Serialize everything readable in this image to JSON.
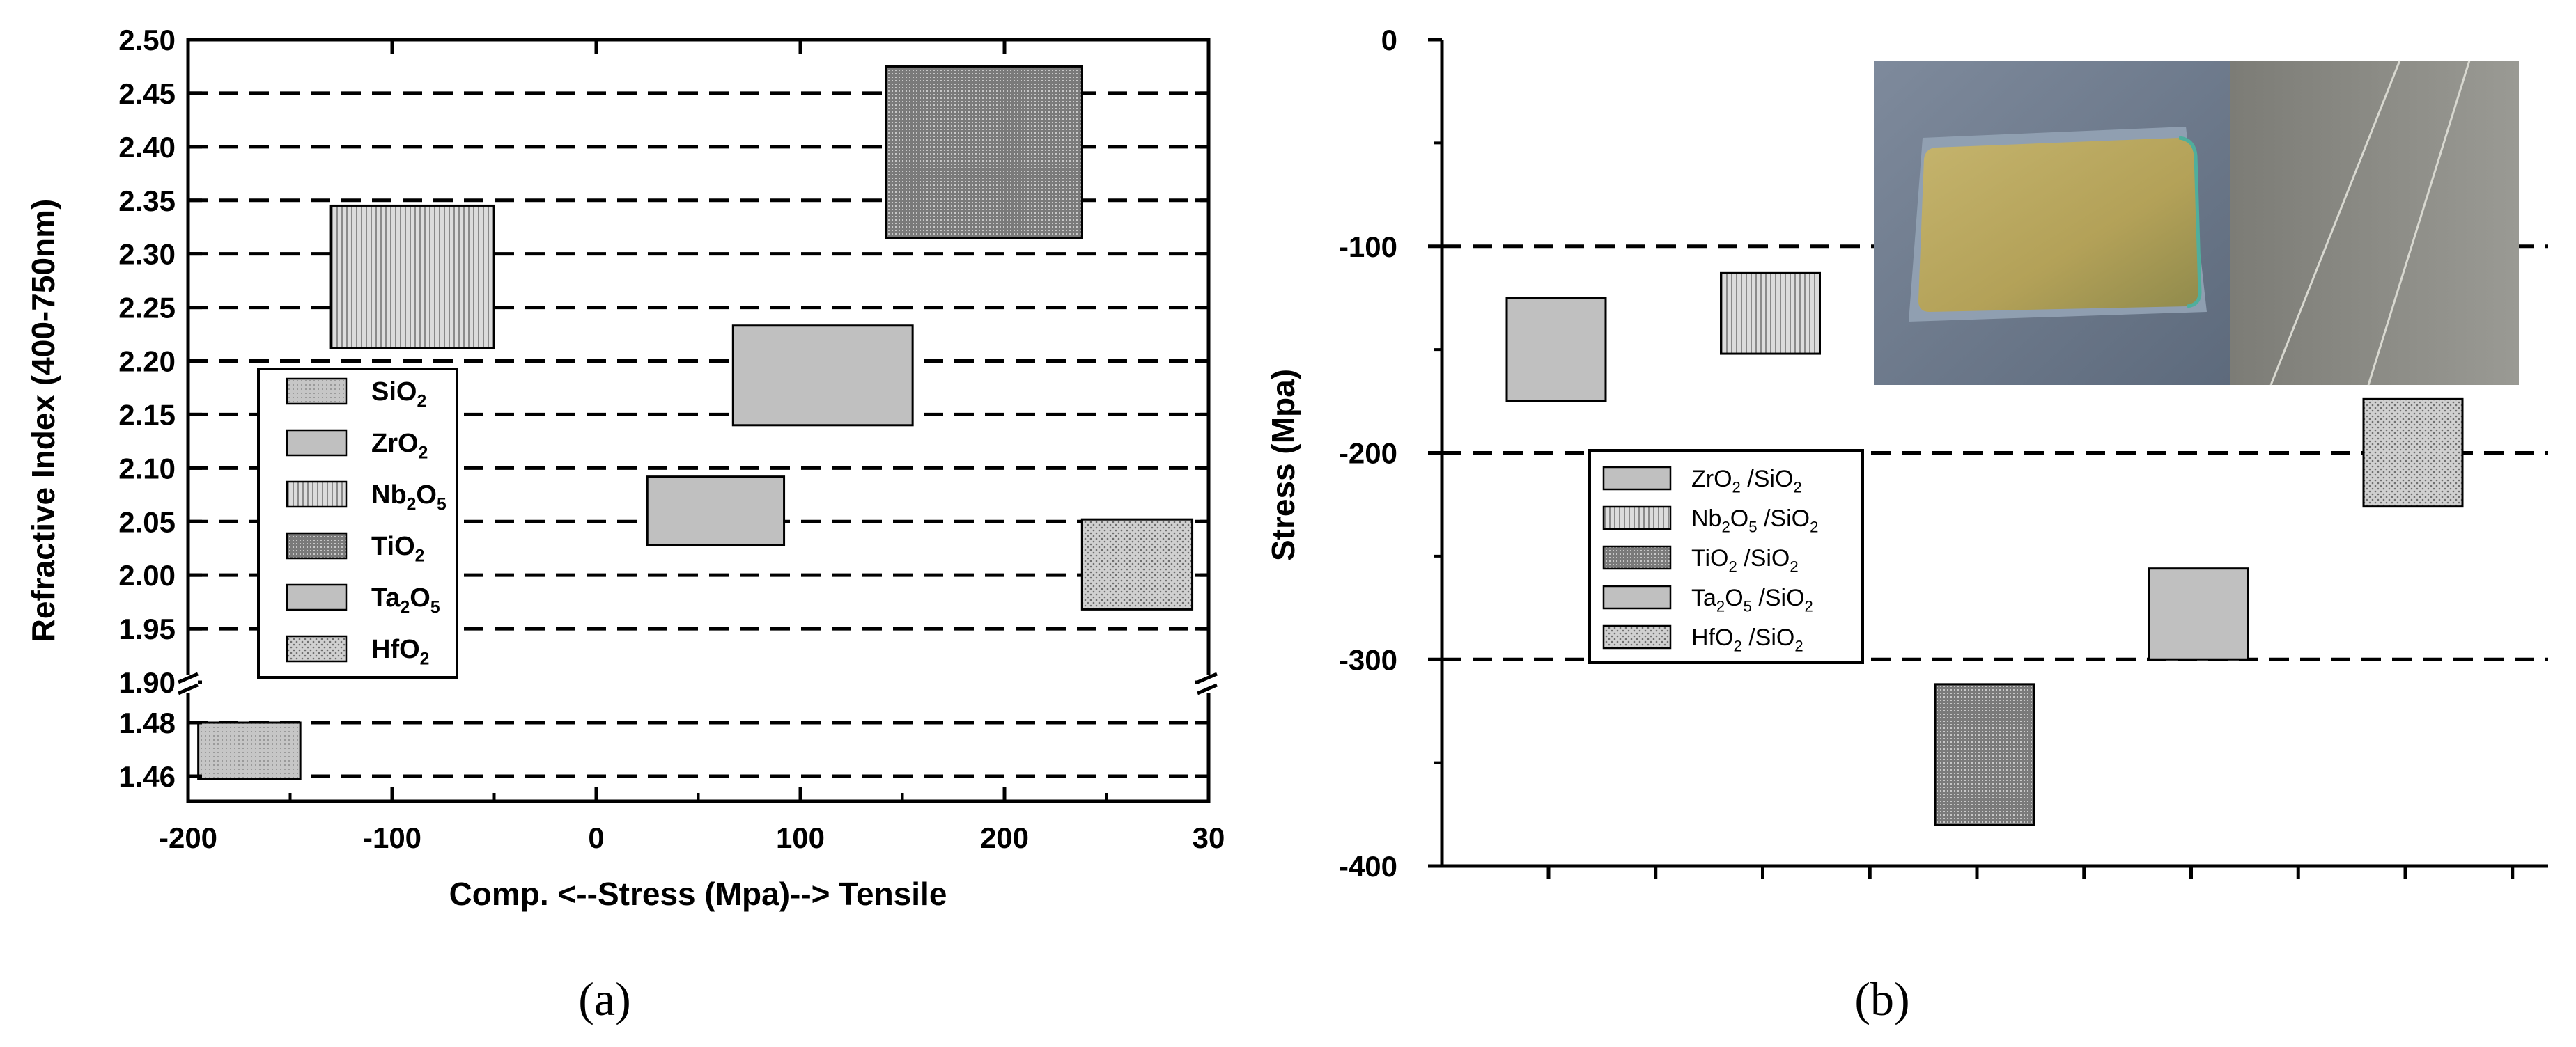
{
  "chart_data": [
    {
      "type": "bar",
      "panel_label": "(a)",
      "xlabel": "Comp. <--Stress (Mpa)--> Tensile",
      "ylabel": "Refractive Index (400-750nm)",
      "xlim": [
        -200,
        300
      ],
      "x_ticks": [
        "-200",
        "-100",
        "0",
        "100",
        "200",
        "30"
      ],
      "y_ticks_upper": [
        "1.90",
        "1.95",
        "2.00",
        "2.05",
        "2.10",
        "2.15",
        "2.20",
        "2.25",
        "2.30",
        "2.35",
        "2.40",
        "2.45",
        "2.50"
      ],
      "y_ticks_lower": [
        "1.46",
        "1.48"
      ],
      "ylim": [
        1.45,
        2.5
      ],
      "axis_break": [
        1.49,
        1.9
      ],
      "grid": "horizontal dashed",
      "legend_position": "left-center",
      "series": [
        {
          "name": "SiO2",
          "stress": [
            -195,
            -145
          ],
          "index": [
            1.459,
            1.48
          ],
          "pattern": "fine-light"
        },
        {
          "name": "ZrO2",
          "stress": [
            25,
            92
          ],
          "index": [
            2.028,
            2.092
          ],
          "pattern": "plain-gray"
        },
        {
          "name": "Nb2O5",
          "stress": [
            -130,
            -50
          ],
          "index": [
            2.212,
            2.345
          ],
          "pattern": "vertical-lines"
        },
        {
          "name": "TiO2",
          "stress": [
            142,
            238
          ],
          "index": [
            2.315,
            2.475
          ],
          "pattern": "dense-dots"
        },
        {
          "name": "Ta2O5",
          "stress": [
            67,
            155
          ],
          "index": [
            2.14,
            2.233
          ],
          "pattern": "plain-gray"
        },
        {
          "name": "HfO2",
          "stress": [
            238,
            292
          ],
          "index": [
            1.968,
            2.052
          ],
          "pattern": "dots"
        }
      ]
    },
    {
      "type": "bar",
      "panel_label": "(b)",
      "xlabel": "",
      "ylabel": "Stress (Mpa)",
      "ylim": [
        -400,
        0
      ],
      "y_ticks": [
        "0",
        "-100",
        "-200",
        "-300",
        "-400"
      ],
      "grid": "horizontal dashed at -100, -200, -300",
      "legend_position": "center-left",
      "inset": "photographs of coated substrate and magnified surface",
      "series": [
        {
          "name": "ZrO2 /SiO2",
          "stress": [
            -175,
            -125
          ],
          "pattern": "plain-gray"
        },
        {
          "name": "Nb2O5 /SiO2",
          "stress": [
            -152,
            -113
          ],
          "pattern": "vertical-lines"
        },
        {
          "name": "TiO2 /SiO2",
          "stress": [
            -380,
            -312
          ],
          "pattern": "dense-dots"
        },
        {
          "name": "Ta2O5 /SiO2",
          "stress": [
            -300,
            -256
          ],
          "pattern": "plain-gray"
        },
        {
          "name": "HfO2 /SiO2",
          "stress": [
            -226,
            -174
          ],
          "pattern": "dots"
        }
      ]
    }
  ]
}
